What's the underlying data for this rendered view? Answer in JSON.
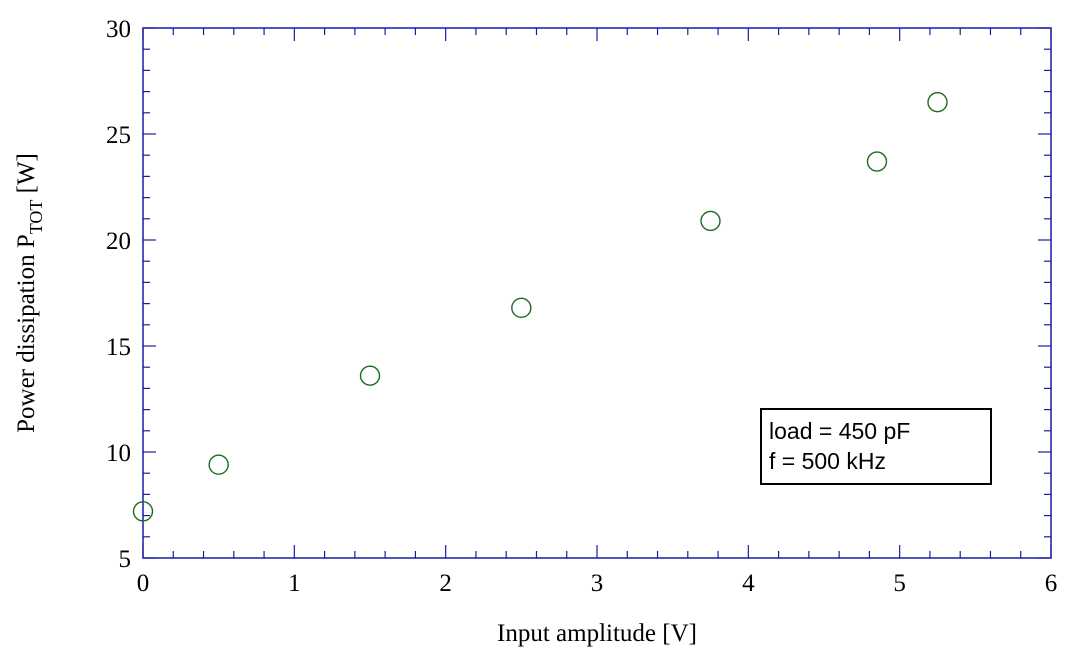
{
  "chart_data": {
    "type": "scatter",
    "xlabel": "Input amplitude [V]",
    "ylabel": {
      "prefix": "Power dissipation P",
      "subscript": "TOT",
      "suffix": " [W]"
    },
    "xlim": [
      0,
      6
    ],
    "ylim": [
      5,
      30
    ],
    "xticks": [
      "0",
      "1",
      "2",
      "3",
      "4",
      "5",
      "6"
    ],
    "yticks": [
      "5",
      "10",
      "15",
      "20",
      "25",
      "30"
    ],
    "grid": false,
    "series": [
      {
        "marker": "open-circle",
        "color": "#1f6b1f",
        "x": [
          0,
          0.5,
          1.5,
          2.5,
          3.75,
          4.85,
          5.25
        ],
        "y": [
          7.2,
          9.4,
          13.6,
          16.8,
          20.9,
          23.7,
          26.5
        ]
      }
    ],
    "annotation": {
      "lines": [
        "load = 450 pF",
        "f = 500 kHz"
      ],
      "placement": "lower-right"
    }
  }
}
